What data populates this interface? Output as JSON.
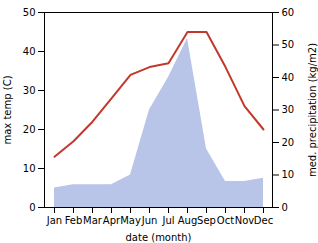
{
  "chart_data": {
    "type": "line",
    "xlabel": "date (month)",
    "ylabel": "max temp (C)",
    "y2label": "med. precipitation (kg/m2)",
    "categories": [
      "Jan",
      "Feb",
      "Mar",
      "Apr",
      "May",
      "Jun",
      "Jul",
      "Aug",
      "Sep",
      "Oct",
      "Nov",
      "Dec"
    ],
    "series": [
      {
        "type": "area",
        "axis": "y2",
        "color": "#b8c4e8",
        "values": [
          6,
          7,
          7,
          7,
          10,
          30,
          40,
          52,
          18,
          8,
          8,
          9
        ]
      },
      {
        "type": "line",
        "color": "#c0392b",
        "values": [
          13,
          17,
          22,
          28,
          34,
          36,
          37,
          45,
          45,
          36,
          26,
          20
        ]
      }
    ],
    "ylim": [
      0,
      50
    ],
    "yticks": [
      0,
      10,
      20,
      30,
      40,
      50
    ],
    "y2lim": [
      0,
      60
    ],
    "y2ticks": [
      0,
      10,
      20,
      30,
      40,
      50,
      60
    ],
    "grid": false
  }
}
